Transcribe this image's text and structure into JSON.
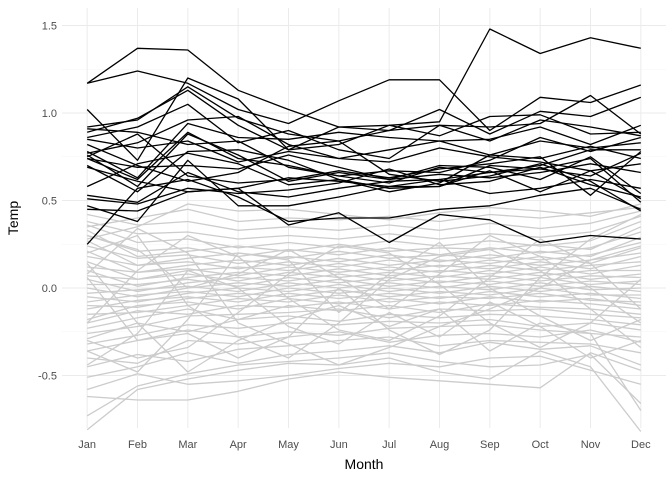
{
  "chart_data": {
    "type": "line",
    "xlabel": "Month",
    "ylabel": "Temp",
    "categories": [
      "Jan",
      "Feb",
      "Mar",
      "Apr",
      "May",
      "Jun",
      "Jul",
      "Aug",
      "Sep",
      "Oct",
      "Nov",
      "Dec"
    ],
    "ylim": [
      -0.8,
      1.6
    ],
    "yticks": [
      -0.5,
      0.0,
      0.5,
      1.0,
      1.5
    ],
    "ytick_labels": [
      "-0.5",
      "0.0",
      "0.5",
      "1.0",
      "1.5"
    ],
    "grid": true,
    "legend": "none",
    "colors": {
      "highlight": "#000000",
      "background": "#cccccc",
      "grid_major": "#ebebeb",
      "grid_minor": "#f5f5f5"
    },
    "highlighted_series": [
      {
        "values": [
          1.17,
          1.37,
          1.36,
          1.13,
          1.02,
          0.92,
          0.93,
          0.95,
          1.48,
          1.34,
          1.43,
          1.37
        ]
      },
      {
        "values": [
          1.17,
          1.24,
          1.17,
          1.02,
          0.94,
          1.07,
          1.19,
          1.19,
          0.9,
          1.09,
          1.06,
          1.16
        ]
      },
      {
        "values": [
          1.02,
          0.73,
          1.2,
          1.08,
          0.79,
          0.92,
          0.9,
          1.02,
          0.88,
          1.01,
          0.98,
          1.09
        ]
      },
      {
        "values": [
          0.92,
          0.96,
          1.15,
          0.97,
          0.88,
          0.84,
          0.9,
          0.93,
          0.84,
          0.96,
          0.92,
          0.87
        ]
      },
      {
        "values": [
          0.89,
          0.97,
          1.13,
          0.93,
          0.79,
          0.82,
          0.93,
          0.87,
          0.98,
          0.99,
          0.88,
          0.89
        ]
      },
      {
        "values": [
          0.86,
          0.92,
          1.05,
          0.83,
          0.9,
          0.79,
          0.74,
          0.93,
          0.92,
          0.94,
          1.1,
          0.88
        ]
      },
      {
        "values": [
          0.78,
          0.63,
          0.94,
          0.86,
          0.85,
          0.89,
          0.86,
          0.84,
          0.85,
          0.92,
          0.82,
          0.93
        ]
      },
      {
        "values": [
          0.77,
          0.83,
          0.96,
          0.98,
          0.82,
          0.74,
          0.79,
          0.84,
          0.76,
          0.84,
          0.8,
          0.83
        ]
      },
      {
        "values": [
          0.74,
          0.62,
          0.89,
          0.74,
          0.7,
          0.64,
          0.6,
          0.69,
          0.66,
          0.7,
          0.79,
          0.79
        ]
      },
      {
        "values": [
          0.76,
          0.58,
          0.88,
          0.76,
          0.61,
          0.66,
          0.62,
          0.65,
          0.63,
          0.66,
          0.71,
          0.66
        ]
      },
      {
        "values": [
          0.7,
          0.55,
          0.78,
          0.79,
          0.73,
          0.62,
          0.57,
          0.58,
          0.7,
          0.68,
          0.64,
          0.77
        ]
      },
      {
        "values": [
          0.58,
          0.71,
          0.77,
          0.71,
          0.59,
          0.62,
          0.55,
          0.6,
          0.76,
          0.74,
          0.81,
          0.74
        ]
      },
      {
        "values": [
          0.51,
          0.48,
          0.57,
          0.54,
          0.56,
          0.6,
          0.68,
          0.59,
          0.61,
          0.69,
          0.59,
          0.52
        ]
      },
      {
        "values": [
          0.47,
          0.38,
          0.73,
          0.47,
          0.47,
          0.52,
          0.58,
          0.58,
          0.67,
          0.55,
          0.67,
          0.51
        ]
      },
      {
        "values": [
          0.45,
          0.44,
          0.55,
          0.57,
          0.36,
          0.43,
          0.26,
          0.42,
          0.39,
          0.26,
          0.3,
          0.28
        ]
      },
      {
        "values": [
          0.25,
          0.57,
          0.62,
          0.52,
          0.38,
          0.4,
          0.4,
          0.45,
          0.47,
          0.53,
          0.57,
          0.45
        ]
      },
      {
        "values": [
          0.75,
          0.88,
          0.64,
          0.6,
          0.62,
          0.67,
          0.63,
          0.68,
          0.71,
          0.75,
          0.53,
          0.78
        ]
      },
      {
        "values": [
          0.69,
          0.61,
          0.55,
          0.57,
          0.63,
          0.61,
          0.58,
          0.62,
          0.66,
          0.68,
          0.74,
          0.49
        ]
      },
      {
        "values": [
          0.53,
          0.49,
          0.66,
          0.55,
          0.52,
          0.57,
          0.61,
          0.62,
          0.54,
          0.57,
          0.62,
          0.57
        ]
      },
      {
        "values": [
          0.74,
          0.69,
          0.7,
          0.68,
          0.76,
          0.69,
          0.62,
          0.7,
          0.69,
          0.62,
          0.75,
          0.54
        ]
      },
      {
        "values": [
          0.85,
          0.8,
          0.84,
          0.72,
          0.78,
          0.74,
          0.72,
          0.8,
          0.75,
          0.72,
          0.67,
          0.71
        ]
      },
      {
        "values": [
          0.82,
          0.7,
          0.61,
          0.66,
          0.81,
          0.84,
          0.65,
          0.61,
          0.64,
          0.71,
          0.61,
          0.44
        ]
      },
      {
        "values": [
          0.91,
          0.89,
          0.82,
          0.84,
          0.69,
          0.64,
          0.67,
          0.66,
          0.73,
          0.86,
          0.78,
          0.86
        ]
      }
    ],
    "background_series": [
      {
        "values": [
          -0.81,
          -0.58,
          -0.52,
          -0.47,
          -0.43,
          -0.44,
          -0.4,
          -0.48,
          -0.52,
          -0.36,
          -0.45,
          -0.82
        ]
      },
      {
        "values": [
          -0.73,
          -0.56,
          -0.49,
          -0.44,
          -0.42,
          -0.4,
          -0.37,
          -0.42,
          -0.45,
          -0.44,
          -0.38,
          -0.66
        ]
      },
      {
        "values": [
          -0.62,
          -0.64,
          -0.64,
          -0.59,
          -0.52,
          -0.48,
          -0.51,
          -0.53,
          -0.55,
          -0.57,
          -0.37,
          -0.47
        ]
      },
      {
        "values": [
          -0.58,
          -0.49,
          -0.55,
          -0.53,
          -0.5,
          -0.46,
          -0.43,
          -0.45,
          -0.4,
          -0.39,
          -0.47,
          -0.55
        ]
      },
      {
        "values": [
          -0.51,
          -0.45,
          -0.37,
          -0.43,
          -0.38,
          -0.36,
          -0.33,
          -0.37,
          -0.31,
          -0.35,
          -0.33,
          -0.44
        ]
      },
      {
        "values": [
          -0.45,
          -0.38,
          -0.42,
          -0.35,
          -0.33,
          -0.3,
          -0.28,
          -0.33,
          -0.3,
          -0.31,
          -0.32,
          -0.37
        ]
      },
      {
        "values": [
          -0.4,
          -0.43,
          -0.3,
          -0.32,
          -0.28,
          -0.25,
          -0.31,
          -0.27,
          -0.26,
          -0.28,
          -0.24,
          -0.31
        ]
      },
      {
        "values": [
          -0.36,
          -0.3,
          -0.24,
          -0.28,
          -0.25,
          -0.27,
          -0.23,
          -0.22,
          -0.21,
          -0.24,
          -0.26,
          -0.28
        ]
      },
      {
        "values": [
          -0.32,
          -0.27,
          -0.21,
          -0.23,
          -0.2,
          -0.21,
          -0.19,
          -0.2,
          -0.18,
          -0.22,
          -0.2,
          -0.24
        ]
      },
      {
        "values": [
          -0.29,
          -0.2,
          -0.25,
          -0.18,
          -0.16,
          -0.19,
          -0.15,
          -0.17,
          -0.15,
          -0.16,
          -0.18,
          -0.21
        ]
      },
      {
        "values": [
          -0.26,
          -0.22,
          -0.16,
          -0.15,
          -0.14,
          -0.12,
          -0.17,
          -0.12,
          -0.13,
          -0.12,
          -0.15,
          -0.17
        ]
      },
      {
        "values": [
          -0.23,
          -0.17,
          -0.12,
          -0.18,
          -0.1,
          -0.13,
          -0.1,
          -0.14,
          -0.09,
          -0.11,
          -0.12,
          -0.15
        ]
      },
      {
        "values": [
          -0.2,
          -0.13,
          -0.15,
          -0.1,
          -0.11,
          -0.08,
          -0.12,
          -0.08,
          -0.1,
          -0.07,
          -0.09,
          -0.12
        ]
      },
      {
        "values": [
          -0.18,
          -0.1,
          -0.08,
          -0.12,
          -0.06,
          -0.09,
          -0.06,
          -0.09,
          -0.05,
          -0.08,
          -0.06,
          -0.1
        ]
      },
      {
        "values": [
          -0.15,
          -0.14,
          -0.1,
          -0.06,
          -0.08,
          -0.04,
          -0.08,
          -0.05,
          -0.06,
          -0.03,
          -0.07,
          -0.08
        ]
      },
      {
        "values": [
          -0.12,
          -0.07,
          -0.05,
          -0.08,
          -0.03,
          -0.06,
          -0.03,
          -0.06,
          -0.02,
          -0.05,
          -0.03,
          -0.06
        ]
      },
      {
        "values": [
          -0.1,
          -0.11,
          -0.06,
          -0.03,
          -0.05,
          -0.01,
          -0.05,
          -0.02,
          -0.04,
          0.0,
          -0.04,
          -0.04
        ]
      },
      {
        "values": [
          -0.08,
          -0.04,
          -0.02,
          -0.05,
          0.0,
          -0.03,
          0.0,
          -0.03,
          0.01,
          -0.02,
          0.01,
          -0.02
        ]
      },
      {
        "values": [
          -0.05,
          -0.08,
          -0.03,
          0.0,
          -0.02,
          0.02,
          -0.02,
          0.01,
          -0.01,
          0.03,
          -0.01,
          0.0
        ]
      },
      {
        "values": [
          -0.03,
          -0.01,
          0.01,
          -0.02,
          0.03,
          0.0,
          0.03,
          0.0,
          0.04,
          0.01,
          0.04,
          0.02
        ]
      },
      {
        "values": [
          0.0,
          -0.05,
          0.0,
          0.03,
          0.01,
          0.05,
          0.01,
          0.04,
          0.02,
          0.06,
          0.02,
          0.04
        ]
      },
      {
        "values": [
          0.02,
          0.02,
          0.05,
          0.01,
          0.06,
          0.03,
          0.06,
          0.03,
          0.07,
          0.04,
          0.07,
          0.06
        ]
      },
      {
        "values": [
          0.05,
          -0.02,
          0.03,
          0.06,
          0.04,
          0.08,
          0.04,
          0.07,
          0.05,
          0.09,
          0.05,
          0.08
        ]
      },
      {
        "values": [
          0.07,
          0.05,
          0.08,
          0.04,
          0.09,
          0.06,
          0.09,
          0.06,
          0.1,
          0.07,
          0.1,
          0.1
        ]
      },
      {
        "values": [
          0.1,
          0.01,
          0.06,
          0.09,
          0.07,
          0.11,
          0.07,
          0.1,
          0.08,
          0.12,
          0.08,
          0.13
        ]
      },
      {
        "values": [
          0.12,
          0.09,
          0.11,
          0.07,
          0.12,
          0.09,
          0.12,
          0.09,
          0.13,
          0.1,
          0.13,
          0.15
        ]
      },
      {
        "values": [
          0.15,
          0.05,
          0.1,
          0.12,
          0.1,
          0.14,
          0.1,
          0.13,
          0.11,
          0.15,
          0.11,
          0.18
        ]
      },
      {
        "values": [
          0.18,
          0.13,
          0.15,
          0.11,
          0.15,
          0.12,
          0.16,
          0.12,
          0.16,
          0.13,
          0.16,
          0.2
        ]
      },
      {
        "values": [
          0.21,
          0.09,
          0.13,
          0.16,
          0.13,
          0.17,
          0.13,
          0.16,
          0.14,
          0.18,
          0.14,
          0.23
        ]
      },
      {
        "values": [
          0.24,
          0.17,
          0.19,
          0.14,
          0.18,
          0.15,
          0.19,
          0.15,
          0.19,
          0.16,
          0.19,
          0.26
        ]
      },
      {
        "values": [
          0.27,
          0.13,
          0.17,
          0.2,
          0.17,
          0.21,
          0.17,
          0.19,
          0.17,
          0.21,
          0.18,
          0.29
        ]
      },
      {
        "values": [
          0.3,
          0.21,
          0.23,
          0.18,
          0.22,
          0.19,
          0.23,
          0.19,
          0.23,
          0.2,
          0.23,
          0.32
        ]
      },
      {
        "values": [
          0.33,
          0.18,
          0.21,
          0.24,
          0.21,
          0.25,
          0.21,
          0.23,
          0.22,
          0.25,
          0.22,
          0.35
        ]
      },
      {
        "values": [
          0.36,
          0.26,
          0.28,
          0.23,
          0.26,
          0.23,
          0.27,
          0.24,
          0.27,
          0.24,
          0.27,
          0.38
        ]
      },
      {
        "values": [
          0.38,
          0.31,
          0.32,
          0.28,
          0.3,
          0.28,
          0.31,
          0.28,
          0.31,
          0.29,
          0.32,
          0.41
        ]
      },
      {
        "values": [
          0.42,
          0.36,
          0.38,
          0.33,
          0.35,
          0.33,
          0.36,
          0.33,
          0.37,
          0.34,
          0.37,
          0.44
        ]
      },
      {
        "values": [
          0.35,
          0.4,
          0.45,
          0.38,
          0.4,
          0.39,
          0.41,
          0.38,
          0.42,
          0.4,
          0.43,
          0.46
        ]
      },
      {
        "values": [
          0.28,
          0.35,
          0.48,
          0.44,
          0.45,
          0.42,
          0.39,
          0.43,
          0.46,
          0.44,
          0.41,
          0.48
        ]
      },
      {
        "values": [
          0.14,
          -0.2,
          -0.48,
          -0.3,
          -0.18,
          -0.1,
          -0.22,
          -0.12,
          -0.36,
          -0.2,
          -0.26,
          -0.7
        ]
      },
      {
        "values": [
          -0.44,
          -0.26,
          0.1,
          0.0,
          -0.22,
          -0.32,
          -0.14,
          -0.28,
          -0.08,
          -0.22,
          -0.4,
          -0.3
        ]
      },
      {
        "values": [
          0.2,
          0.3,
          -0.1,
          -0.28,
          -0.4,
          -0.2,
          0.05,
          0.18,
          0.22,
          0.1,
          -0.12,
          -0.34
        ]
      },
      {
        "values": [
          -0.3,
          -0.4,
          -0.34,
          -0.14,
          0.08,
          0.24,
          0.2,
          0.02,
          -0.2,
          -0.34,
          -0.2,
          0.05
        ]
      },
      {
        "values": [
          0.06,
          -0.3,
          -0.26,
          -0.4,
          -0.28,
          0.0,
          -0.24,
          -0.38,
          -0.24,
          0.06,
          0.28,
          0.42
        ]
      },
      {
        "values": [
          -0.2,
          0.1,
          0.3,
          0.18,
          -0.06,
          -0.24,
          -0.3,
          -0.16,
          0.06,
          0.28,
          0.14,
          -0.12
        ]
      },
      {
        "values": [
          0.3,
          0.22,
          0.0,
          0.08,
          0.22,
          0.06,
          -0.12,
          0.08,
          0.3,
          0.18,
          0.0,
          -0.2
        ]
      },
      {
        "values": [
          -0.36,
          -0.48,
          -0.18,
          0.2,
          0.16,
          -0.14,
          0.08,
          0.26,
          0.0,
          -0.16,
          -0.3,
          -0.18
        ]
      },
      {
        "values": [
          0.08,
          0.34,
          0.2,
          -0.2,
          -0.32,
          -0.44,
          -0.34,
          -0.22,
          -0.12,
          0.0,
          0.16,
          0.24
        ]
      }
    ]
  }
}
